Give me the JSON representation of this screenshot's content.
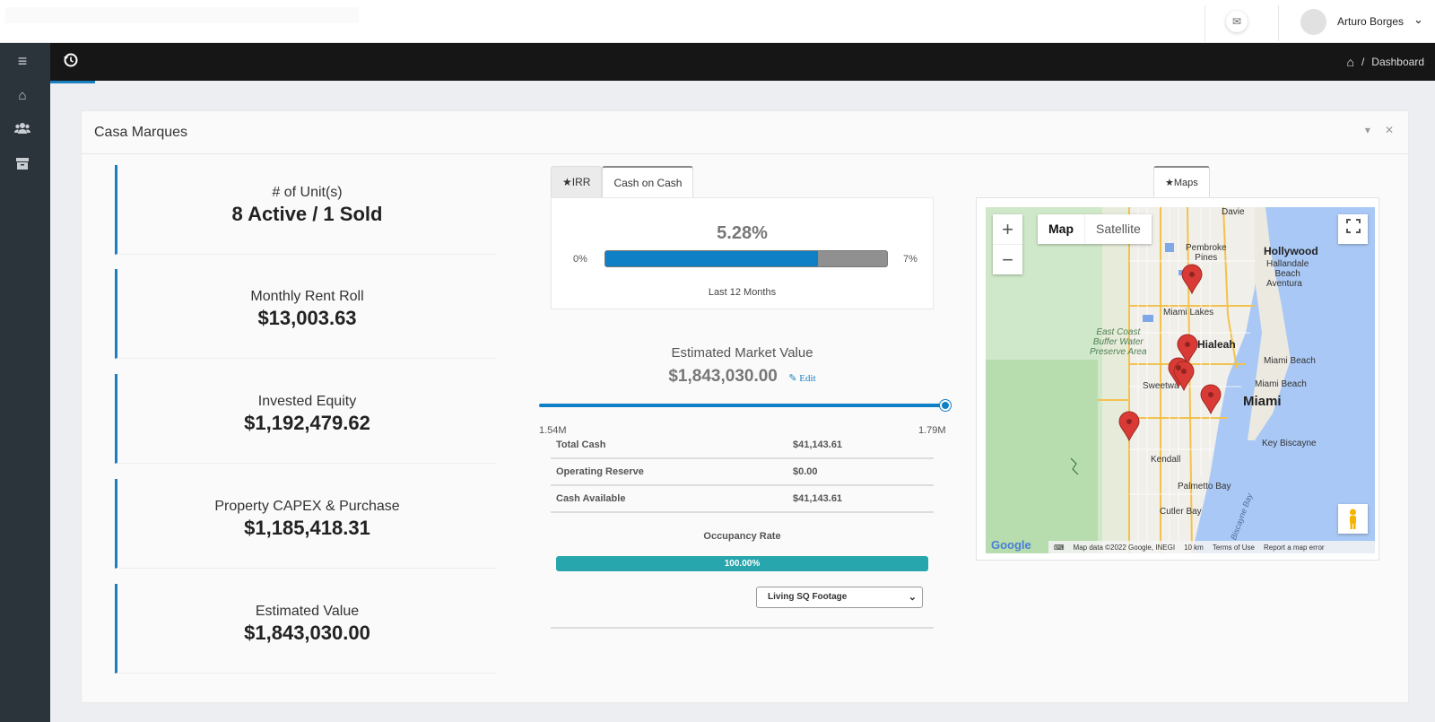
{
  "topbar": {
    "username": "Arturo Borges",
    "mail_icon": "envelope-icon",
    "chevron": "chevron-down-icon"
  },
  "sidebar": {
    "items": [
      {
        "icon": "menu-icon"
      },
      {
        "icon": "home-icon"
      },
      {
        "icon": "users-icon"
      },
      {
        "icon": "archive-icon"
      }
    ]
  },
  "breadcrumb": {
    "sep": "/",
    "current": "Dashboard"
  },
  "panel": {
    "title": "Casa Marques"
  },
  "stats": [
    {
      "label": "# of Unit(s)",
      "value": "8 Active / 1 Sold"
    },
    {
      "label": "Monthly Rent Roll",
      "value": "$13,003.63"
    },
    {
      "label": "Invested Equity",
      "value": "$1,192,479.62"
    },
    {
      "label": "Property CAPEX & Purchase",
      "value": "$1,185,418.31"
    },
    {
      "label": "Estimated Value",
      "value": "$1,843,030.00"
    }
  ],
  "tabs": [
    {
      "label": "★IRR"
    },
    {
      "label": "Cash on Cash"
    }
  ],
  "cash_on_cash": {
    "value_text": "5.28%",
    "min": "0%",
    "max": "7%",
    "fill_fraction": 0.754,
    "note": "Last 12 Months"
  },
  "market_value": {
    "label": "Estimated Market Value",
    "value": "$1,843,030.00",
    "edit": "✎ Edit",
    "slider_min": "1.54M",
    "slider_max": "1.79M"
  },
  "cash_table": [
    {
      "k": "Total Cash",
      "v": "$41,143.61"
    },
    {
      "k": "Operating Reserve",
      "v": "$0.00"
    },
    {
      "k": "Cash Available",
      "v": "$41,143.61"
    }
  ],
  "occupancy": {
    "label": "Occupancy Rate",
    "text": "100.00%",
    "fraction": 1.0
  },
  "sqft_select": {
    "selected": "Living SQ Footage"
  },
  "map": {
    "tab": "★Maps",
    "zoom_in": "+",
    "zoom_out": "−",
    "types": [
      "Map",
      "Satellite"
    ],
    "labels": {
      "davie": "Davie",
      "pembroke": "Pembroke\nPines",
      "hollywood": "Hollywood",
      "hallandale": "Hallandale\nBeach",
      "aventura": "Aventura",
      "miami_lakes": "Miami Lakes",
      "hialeah": "Hialeah",
      "ecb": "East Coast\nBuffer Water\nPreserve Area",
      "miami_beach1": "Miami Beach",
      "miami_beach2": "Miami Beach",
      "sweetwater": "Sweetwa",
      "miami": "Miami",
      "key_biscayne": "Key Biscayne",
      "kendall": "Kendall",
      "palmetto": "Palmetto Bay",
      "cutler": "Cutler Bay",
      "biscayne_bay": "Biscayne Bay"
    },
    "footer": [
      "Map data ©2022 Google, INEGI",
      "10 km",
      "Terms of Use",
      "Report a map error"
    ],
    "logo": "Google"
  },
  "colors": {
    "accent": "#1a7fc1",
    "progress": "#0f7fc6",
    "occupancy": "#28a6ad",
    "navbar": "#161616",
    "sidebar": "#2b333b"
  }
}
